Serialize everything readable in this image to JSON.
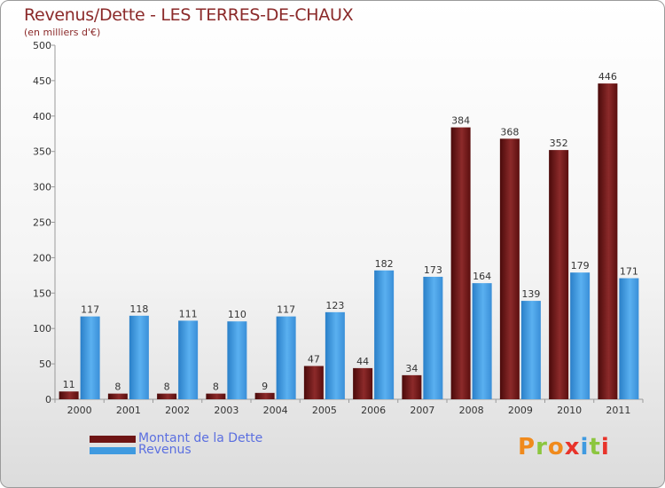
{
  "header": {
    "title": "Revenus/Dette - LES TERRES-DE-CHAUX",
    "subtitle": "(en milliers d'€)"
  },
  "chart_data": {
    "type": "bar",
    "categories": [
      "2000",
      "2001",
      "2002",
      "2003",
      "2004",
      "2005",
      "2006",
      "2007",
      "2008",
      "2009",
      "2010",
      "2011"
    ],
    "series": [
      {
        "name": "Montant de la Dette",
        "color": "#6e1414",
        "values": [
          11,
          8,
          8,
          8,
          9,
          47,
          44,
          34,
          384,
          368,
          352,
          446
        ]
      },
      {
        "name": "Revenus",
        "color": "#3f9ae0",
        "values": [
          117,
          118,
          111,
          110,
          117,
          123,
          182,
          173,
          164,
          139,
          179,
          171
        ]
      }
    ],
    "ylim": [
      0,
      500
    ],
    "yticks": [
      0,
      50,
      100,
      150,
      200,
      250,
      300,
      350,
      400,
      450,
      500
    ],
    "grid": false,
    "legend_position": "bottom-left"
  },
  "legend": {
    "items": [
      {
        "label": "Montant de la Dette",
        "color": "#6e1414"
      },
      {
        "label": "Revenus",
        "color": "#3f9ae0"
      }
    ]
  },
  "logo": {
    "text": "Proxiti",
    "colors": [
      "#f08a1c",
      "#8cc63f",
      "#f08a1c",
      "#e8332a",
      "#3f9ae0",
      "#8cc63f",
      "#e8332a"
    ]
  }
}
